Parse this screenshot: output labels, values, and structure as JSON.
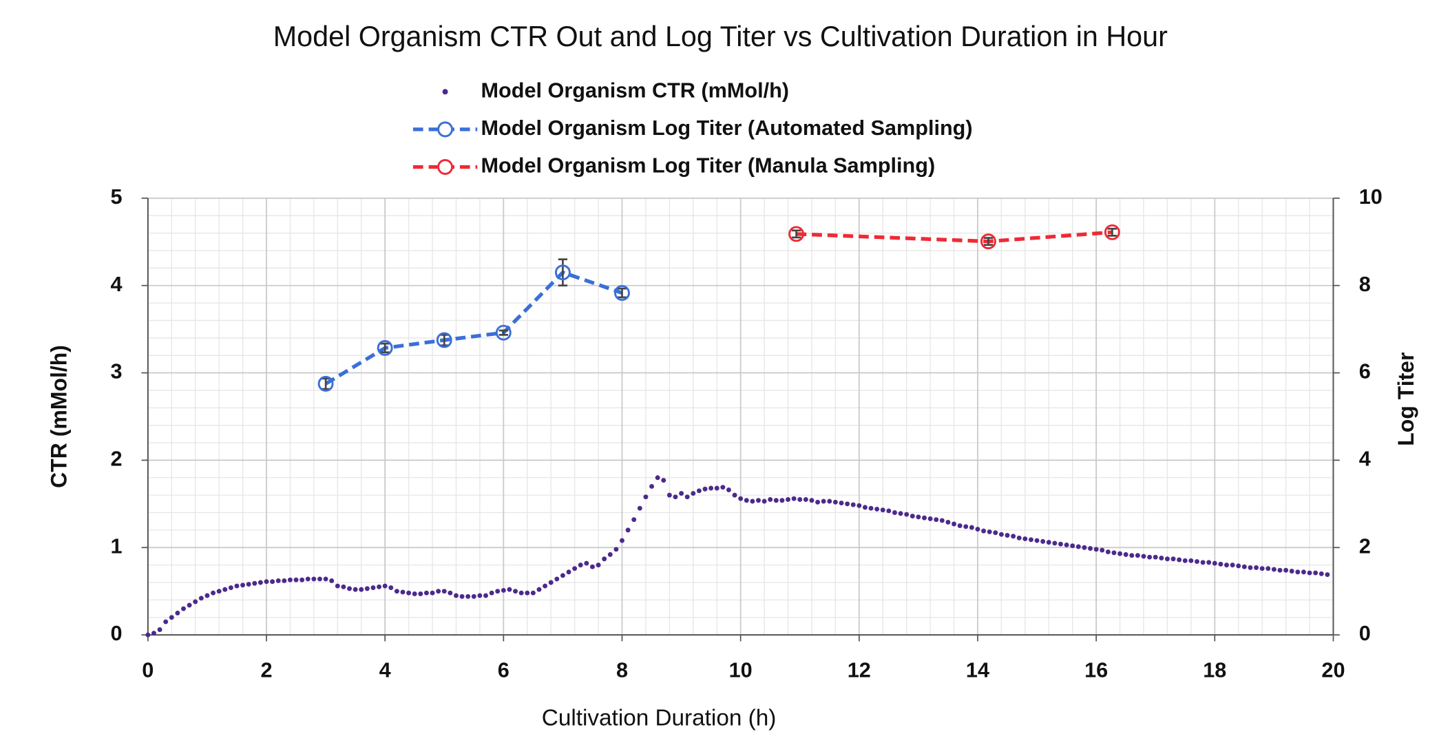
{
  "chart_data": {
    "type": "scatter",
    "title": "Model Organism CTR Out and Log Titer vs Cultivation Duration in Hour",
    "xlabel": "Cultivation Duration (h)",
    "ylabel": "CTR (mMol/h)",
    "y2label": "Log Titer",
    "xlim": [
      0,
      20
    ],
    "xticks": [
      0,
      2,
      4,
      6,
      8,
      10,
      12,
      14,
      16,
      18,
      20
    ],
    "ylim": [
      0,
      5
    ],
    "yticks": [
      0,
      1,
      2,
      3,
      4,
      5
    ],
    "y2lim": [
      0,
      10
    ],
    "y2ticks": [
      0,
      2,
      4,
      6,
      8,
      10
    ],
    "grid": true,
    "minor_grid": true,
    "legend": "top",
    "series": [
      {
        "name": "Model Organism CTR (mMol/h)",
        "color": "#4b2a8c",
        "style": "markers",
        "x": [
          0,
          0.1,
          0.2,
          0.3,
          0.4,
          0.5,
          0.6,
          0.7,
          0.8,
          0.9,
          1,
          1.1,
          1.2,
          1.3,
          1.4,
          1.5,
          1.6,
          1.7,
          1.8,
          1.9,
          2,
          2.1,
          2.2,
          2.3,
          2.4,
          2.5,
          2.6,
          2.7,
          2.8,
          2.9,
          3,
          3.1,
          3.2,
          3.3,
          3.4,
          3.5,
          3.6,
          3.7,
          3.8,
          3.9,
          4,
          4.1,
          4.2,
          4.3,
          4.4,
          4.5,
          4.6,
          4.7,
          4.8,
          4.9,
          5,
          5.1,
          5.2,
          5.3,
          5.4,
          5.5,
          5.6,
          5.7,
          5.8,
          5.9,
          6,
          6.1,
          6.2,
          6.3,
          6.4,
          6.5,
          6.6,
          6.7,
          6.8,
          6.9,
          7,
          7.1,
          7.2,
          7.3,
          7.4,
          7.5,
          7.6,
          7.7,
          7.8,
          7.9,
          8,
          8.1,
          8.2,
          8.3,
          8.4,
          8.5,
          8.6,
          8.7,
          8.8,
          8.9,
          9,
          9.1,
          9.2,
          9.3,
          9.4,
          9.5,
          9.6,
          9.7,
          9.8,
          9.9,
          10,
          10.1,
          10.2,
          10.3,
          10.4,
          10.5,
          10.6,
          10.7,
          10.8,
          10.9,
          11,
          11.1,
          11.2,
          11.3,
          11.4,
          11.5,
          11.6,
          11.7,
          11.8,
          11.9,
          12,
          12.1,
          12.2,
          12.3,
          12.4,
          12.5,
          12.6,
          12.7,
          12.8,
          12.9,
          13,
          13.1,
          13.2,
          13.3,
          13.4,
          13.5,
          13.6,
          13.7,
          13.8,
          13.9,
          14,
          14.1,
          14.2,
          14.3,
          14.4,
          14.5,
          14.6,
          14.7,
          14.8,
          14.9,
          15,
          15.1,
          15.2,
          15.3,
          15.4,
          15.5,
          15.6,
          15.7,
          15.8,
          15.9,
          16,
          16.1,
          16.2,
          16.3,
          16.4,
          16.5,
          16.6,
          16.7,
          16.8,
          16.9,
          17,
          17.1,
          17.2,
          17.3,
          17.4,
          17.5,
          17.6,
          17.7,
          17.8,
          17.9,
          18,
          18.1,
          18.2,
          18.3,
          18.4,
          18.5,
          18.6,
          18.7,
          18.8,
          18.9,
          19,
          19.1,
          19.2,
          19.3,
          19.4,
          19.5,
          19.6,
          19.7,
          19.8,
          19.9
        ],
        "values": [
          0,
          0.02,
          0.06,
          0.15,
          0.2,
          0.25,
          0.3,
          0.34,
          0.38,
          0.42,
          0.45,
          0.48,
          0.5,
          0.52,
          0.54,
          0.56,
          0.57,
          0.58,
          0.59,
          0.6,
          0.61,
          0.61,
          0.62,
          0.62,
          0.63,
          0.63,
          0.63,
          0.64,
          0.64,
          0.64,
          0.64,
          0.62,
          0.56,
          0.55,
          0.53,
          0.52,
          0.52,
          0.53,
          0.54,
          0.55,
          0.56,
          0.54,
          0.5,
          0.49,
          0.48,
          0.47,
          0.47,
          0.48,
          0.48,
          0.5,
          0.5,
          0.48,
          0.45,
          0.44,
          0.44,
          0.44,
          0.45,
          0.45,
          0.48,
          0.5,
          0.51,
          0.52,
          0.5,
          0.48,
          0.48,
          0.48,
          0.52,
          0.56,
          0.6,
          0.64,
          0.68,
          0.72,
          0.76,
          0.8,
          0.82,
          0.78,
          0.8,
          0.87,
          0.92,
          0.98,
          1.08,
          1.2,
          1.32,
          1.45,
          1.58,
          1.7,
          1.8,
          1.77,
          1.6,
          1.58,
          1.62,
          1.58,
          1.62,
          1.65,
          1.67,
          1.68,
          1.68,
          1.69,
          1.66,
          1.6,
          1.56,
          1.54,
          1.53,
          1.54,
          1.53,
          1.55,
          1.54,
          1.54,
          1.55,
          1.56,
          1.55,
          1.55,
          1.54,
          1.52,
          1.53,
          1.53,
          1.52,
          1.51,
          1.5,
          1.49,
          1.48,
          1.46,
          1.45,
          1.44,
          1.43,
          1.42,
          1.4,
          1.39,
          1.38,
          1.36,
          1.35,
          1.34,
          1.33,
          1.32,
          1.31,
          1.29,
          1.27,
          1.25,
          1.24,
          1.23,
          1.21,
          1.19,
          1.18,
          1.17,
          1.15,
          1.14,
          1.13,
          1.11,
          1.1,
          1.09,
          1.08,
          1.07,
          1.06,
          1.05,
          1.04,
          1.03,
          1.02,
          1.01,
          1,
          0.99,
          0.98,
          0.97,
          0.95,
          0.94,
          0.93,
          0.92,
          0.91,
          0.91,
          0.9,
          0.89,
          0.89,
          0.88,
          0.87,
          0.87,
          0.86,
          0.85,
          0.85,
          0.84,
          0.83,
          0.83,
          0.82,
          0.81,
          0.8,
          0.8,
          0.79,
          0.78,
          0.77,
          0.77,
          0.76,
          0.76,
          0.75,
          0.74,
          0.74,
          0.73,
          0.72,
          0.72,
          0.71,
          0.71,
          0.7,
          0.69
        ]
      },
      {
        "name": "Model Organism Log Titer (Automated Sampling)",
        "color": "#3a6fd8",
        "style": "dashed-line-open-markers",
        "axis": "y2",
        "x": [
          3,
          4,
          5,
          6,
          7,
          8
        ],
        "values": [
          5.75,
          6.57,
          6.75,
          6.92,
          8.3,
          7.83
        ],
        "errors": [
          0.12,
          0.1,
          0.12,
          0.05,
          0.3,
          0.1
        ]
      },
      {
        "name": "Model Organism Log Titer (Manula Sampling)",
        "color": "#ee2a35",
        "style": "dashed-line-open-markers",
        "axis": "y2",
        "x": [
          10.94,
          14.18,
          16.27
        ],
        "values": [
          9.18,
          9.01,
          9.22
        ],
        "errors": [
          0.08,
          0.08,
          0.08
        ]
      }
    ]
  }
}
